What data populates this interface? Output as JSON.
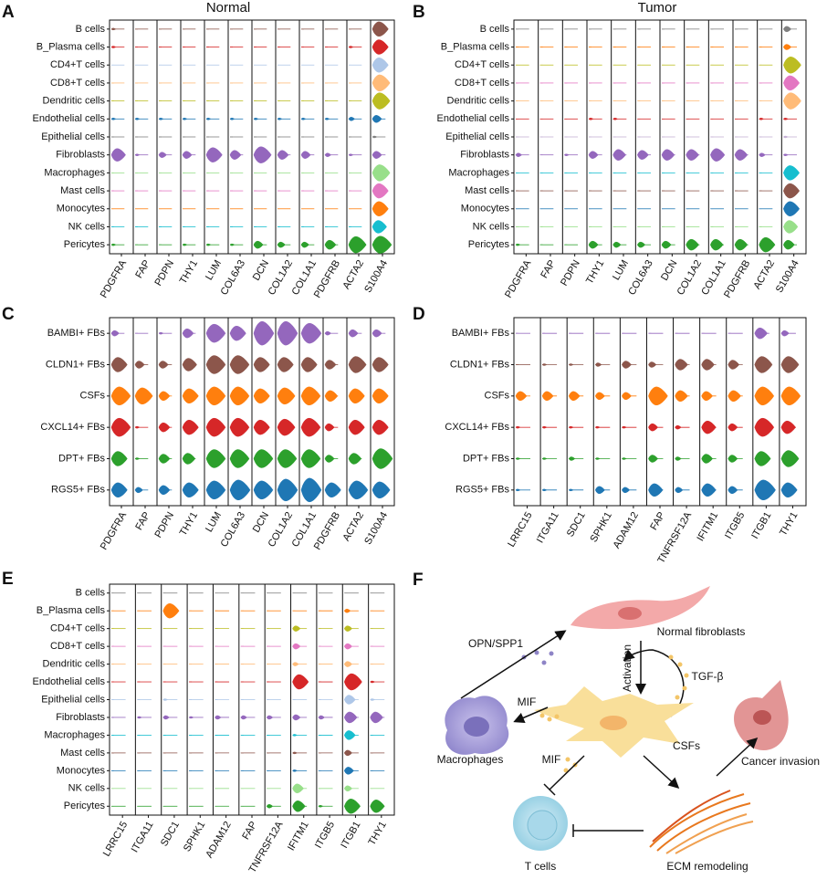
{
  "panels": [
    {
      "label": "A",
      "title": "Normal",
      "rows": [
        "B cells",
        "B_Plasma cells",
        "CD4+T cells",
        "CD8+T cells",
        "Dendritic cells",
        "Endothelial cells",
        "Epithelial cells",
        "Fibroblasts",
        "Macrophages",
        "Mast cells",
        "Monocytes",
        "NK cells",
        "Pericytes"
      ],
      "columns": [
        "PDGFRA",
        "FAP",
        "PDPN",
        "THY1",
        "LUM",
        "COL6A3",
        "DCN",
        "COL1A2",
        "COL1A1",
        "PDGFRB",
        "ACTA2",
        "S100A4"
      ],
      "row_colors": [
        "#8c564b",
        "#d62728",
        "#aec7e8",
        "#ffbb78",
        "#bcbd22",
        "#1f77b4",
        "#7f7f7f",
        "#9467bd",
        "#98df8a",
        "#e377c2",
        "#ff7f0e",
        "#17becf",
        "#2ca02c"
      ],
      "widths": [
        [
          1,
          0,
          0,
          0,
          0,
          0,
          0,
          0,
          0,
          0,
          0,
          8
        ],
        [
          1,
          0,
          0,
          0,
          0,
          0,
          0,
          0,
          0,
          0,
          1,
          8
        ],
        [
          0,
          0,
          0,
          0,
          0,
          0,
          0,
          0,
          0,
          0,
          0,
          8
        ],
        [
          0,
          0,
          0,
          0,
          0,
          0,
          0,
          0,
          0,
          0,
          0,
          9
        ],
        [
          0,
          0,
          0,
          0,
          0,
          0,
          0,
          0,
          0,
          0,
          0,
          9
        ],
        [
          1,
          1,
          1,
          1,
          1,
          1,
          1,
          1,
          1,
          1,
          2,
          4
        ],
        [
          0,
          0,
          0,
          0,
          0,
          0,
          0,
          0,
          0,
          0,
          0,
          1
        ],
        [
          7,
          1,
          3,
          4,
          8,
          5,
          9,
          5,
          4,
          2,
          1,
          4
        ],
        [
          0,
          0,
          0,
          0,
          0,
          0,
          0,
          0,
          0,
          0,
          0,
          9
        ],
        [
          0,
          0,
          0,
          0,
          0,
          0,
          0,
          0,
          0,
          0,
          0,
          8
        ],
        [
          0,
          0,
          0,
          0,
          0,
          0,
          0,
          0,
          0,
          0,
          0,
          8
        ],
        [
          0,
          0,
          0,
          0,
          0,
          0,
          0,
          0,
          0,
          0,
          0,
          7
        ],
        [
          1,
          0,
          0,
          1,
          1,
          1,
          4,
          3,
          3,
          5,
          9,
          10
        ]
      ]
    },
    {
      "label": "B",
      "title": "Tumor",
      "rows": [
        "B cells",
        "B_Plasma cells",
        "CD4+T cells",
        "CD8+T cells",
        "Dendritic cells",
        "Endothelial cells",
        "Epithelial cells",
        "Fibroblasts",
        "Macrophages",
        "Mast cells",
        "Monocytes",
        "NK cells",
        "Pericytes"
      ],
      "columns": [
        "PDGFRA",
        "FAP",
        "PDPN",
        "THY1",
        "LUM",
        "COL6A3",
        "DCN",
        "COL1A2",
        "COL1A1",
        "PDGFRB",
        "ACTA2",
        "S100A4"
      ],
      "row_colors": [
        "#7f7f7f",
        "#ff7f0e",
        "#bcbd22",
        "#e377c2",
        "#ffbb78",
        "#d62728",
        "#c5b0d5",
        "#9467bd",
        "#17becf",
        "#8c564b",
        "#1f77b4",
        "#98df8a",
        "#2ca02c"
      ],
      "widths": [
        [
          0,
          0,
          0,
          0,
          0,
          0,
          0,
          0,
          0,
          0,
          0,
          3
        ],
        [
          0,
          0,
          0,
          0,
          0,
          0,
          0,
          0,
          0,
          0,
          0,
          3
        ],
        [
          0,
          0,
          0,
          0,
          0,
          0,
          0,
          0,
          0,
          0,
          0,
          9
        ],
        [
          0,
          0,
          0,
          0,
          0,
          0,
          0,
          0,
          0,
          0,
          0,
          8
        ],
        [
          0,
          0,
          0,
          0,
          0,
          0,
          0,
          0,
          0,
          0,
          0,
          9
        ],
        [
          0,
          0,
          0,
          1,
          1,
          0,
          0,
          0,
          0,
          0,
          1,
          1
        ],
        [
          0,
          0,
          0,
          0,
          0,
          0,
          0,
          0,
          0,
          0,
          0,
          1
        ],
        [
          2,
          0,
          1,
          4,
          6,
          5,
          6,
          6,
          7,
          6,
          2,
          1
        ],
        [
          0,
          0,
          0,
          0,
          0,
          0,
          0,
          0,
          0,
          0,
          0,
          8
        ],
        [
          0,
          0,
          0,
          0,
          0,
          0,
          0,
          0,
          0,
          0,
          0,
          8
        ],
        [
          0,
          0,
          0,
          0,
          0,
          0,
          0,
          0,
          0,
          0,
          0,
          8
        ],
        [
          0,
          0,
          0,
          0,
          0,
          0,
          0,
          0,
          0,
          0,
          0,
          7
        ],
        [
          1,
          0,
          0,
          4,
          3,
          3,
          4,
          6,
          6,
          6,
          8,
          5
        ]
      ]
    },
    {
      "label": "C",
      "rows": [
        "BAMBI+ FBs",
        "CLDN1+ FBs",
        "CSFs",
        "CXCL14+ FBs",
        "DPT+ FBs",
        "RGS5+ FBs"
      ],
      "columns": [
        "PDGFRA",
        "FAP",
        "PDPN",
        "THY1",
        "LUM",
        "COL6A3",
        "DCN",
        "COL1A2",
        "COL1A1",
        "PDGFRB",
        "ACTA2",
        "S100A4"
      ],
      "row_colors": [
        "#9467bd",
        "#8c564b",
        "#ff7f0e",
        "#d62728",
        "#2ca02c",
        "#1f77b4"
      ],
      "widths": [
        [
          3,
          0,
          1,
          5,
          10,
          8,
          13,
          13,
          11,
          2,
          4,
          4
        ],
        [
          8,
          4,
          4,
          7,
          10,
          10,
          8,
          8,
          8,
          5,
          9,
          8
        ],
        [
          10,
          9,
          5,
          8,
          10,
          10,
          8,
          9,
          10,
          6,
          8,
          8
        ],
        [
          10,
          1,
          5,
          8,
          10,
          10,
          8,
          9,
          10,
          4,
          8,
          8
        ],
        [
          8,
          1,
          5,
          6,
          10,
          10,
          10,
          10,
          10,
          4,
          6,
          11
        ],
        [
          8,
          3,
          5,
          8,
          10,
          11,
          10,
          12,
          13,
          8,
          10,
          9
        ]
      ]
    },
    {
      "label": "D",
      "rows": [
        "BAMBI+ FBs",
        "CLDN1+ FBs",
        "CSFs",
        "CXCL14+ FBs",
        "DPT+ FBs",
        "RGS5+ FBs"
      ],
      "columns": [
        "LRRC15",
        "ITGA11",
        "SDC1",
        "SPHK1",
        "ADAM12",
        "FAP",
        "TNFRSF12A",
        "IFITM1",
        "ITGB5",
        "ITGB1",
        "THY1"
      ],
      "row_colors": [
        "#9467bd",
        "#8c564b",
        "#ff7f0e",
        "#d62728",
        "#2ca02c",
        "#1f77b4"
      ],
      "widths": [
        [
          0,
          0,
          0,
          0,
          0,
          0,
          0,
          0,
          0,
          6,
          3
        ],
        [
          0,
          1,
          1,
          2,
          4,
          3,
          6,
          6,
          5,
          9,
          9
        ],
        [
          5,
          5,
          5,
          4,
          4,
          10,
          6,
          5,
          6,
          10,
          10
        ],
        [
          1,
          1,
          1,
          1,
          1,
          4,
          2,
          7,
          4,
          10,
          7
        ],
        [
          1,
          1,
          2,
          1,
          1,
          4,
          2,
          5,
          4,
          8,
          9
        ],
        [
          1,
          1,
          1,
          4,
          3,
          7,
          3,
          7,
          4,
          11,
          8
        ]
      ]
    },
    {
      "label": "E",
      "rows": [
        "B cells",
        "B_Plasma cells",
        "CD4+T cells",
        "CD8+T cells",
        "Dendritic cells",
        "Endothelial cells",
        "Epithelial cells",
        "Fibroblasts",
        "Macrophages",
        "Mast cells",
        "Monocytes",
        "NK cells",
        "Pericytes"
      ],
      "columns": [
        "LRRC15",
        "ITGA11",
        "SDC1",
        "SPHK1",
        "ADAM12",
        "FAP",
        "TNFRSF12A",
        "IFITM1",
        "ITGB5",
        "ITGB1",
        "THY1"
      ],
      "row_colors": [
        "#7f7f7f",
        "#ff7f0e",
        "#bcbd22",
        "#e377c2",
        "#ffbb78",
        "#d62728",
        "#aec7e8",
        "#9467bd",
        "#17becf",
        "#8c564b",
        "#1f77b4",
        "#98df8a",
        "#2ca02c"
      ],
      "widths": [
        [
          0,
          0,
          0,
          0,
          0,
          0,
          0,
          0,
          0,
          0,
          0
        ],
        [
          0,
          0,
          8,
          0,
          0,
          0,
          0,
          0,
          0,
          2,
          0
        ],
        [
          0,
          0,
          0,
          0,
          0,
          0,
          0,
          3,
          0,
          3,
          0
        ],
        [
          0,
          0,
          0,
          0,
          0,
          0,
          0,
          3,
          0,
          3,
          0
        ],
        [
          0,
          0,
          0,
          0,
          0,
          0,
          0,
          2,
          0,
          3,
          0
        ],
        [
          0,
          0,
          0,
          0,
          0,
          0,
          0,
          8,
          0,
          9,
          1
        ],
        [
          0,
          0,
          1,
          0,
          0,
          0,
          0,
          0,
          0,
          5,
          1
        ],
        [
          0,
          1,
          2,
          1,
          2,
          2,
          2,
          3,
          2,
          6,
          6
        ],
        [
          0,
          0,
          0,
          0,
          0,
          0,
          0,
          1,
          0,
          5,
          0
        ],
        [
          0,
          0,
          0,
          0,
          0,
          0,
          0,
          1,
          0,
          3,
          0
        ],
        [
          0,
          0,
          0,
          0,
          0,
          0,
          0,
          1,
          0,
          4,
          0
        ],
        [
          0,
          0,
          0,
          0,
          0,
          0,
          0,
          5,
          0,
          3,
          0
        ],
        [
          0,
          0,
          0,
          0,
          0,
          0,
          2,
          6,
          1,
          8,
          7
        ]
      ]
    }
  ],
  "diagram": {
    "label": "F",
    "normal": "Normal fibroblasts",
    "opn": "OPN/SPP1",
    "activation": "Activation",
    "tgf": "TGF-β",
    "mif1": "MIF",
    "mif2": "MIF",
    "macrophages": "Macrophages",
    "csfs": "CSFs",
    "cancer": "Cancer invasion",
    "tcells": "T cells",
    "ecm": "ECM remodeling"
  }
}
